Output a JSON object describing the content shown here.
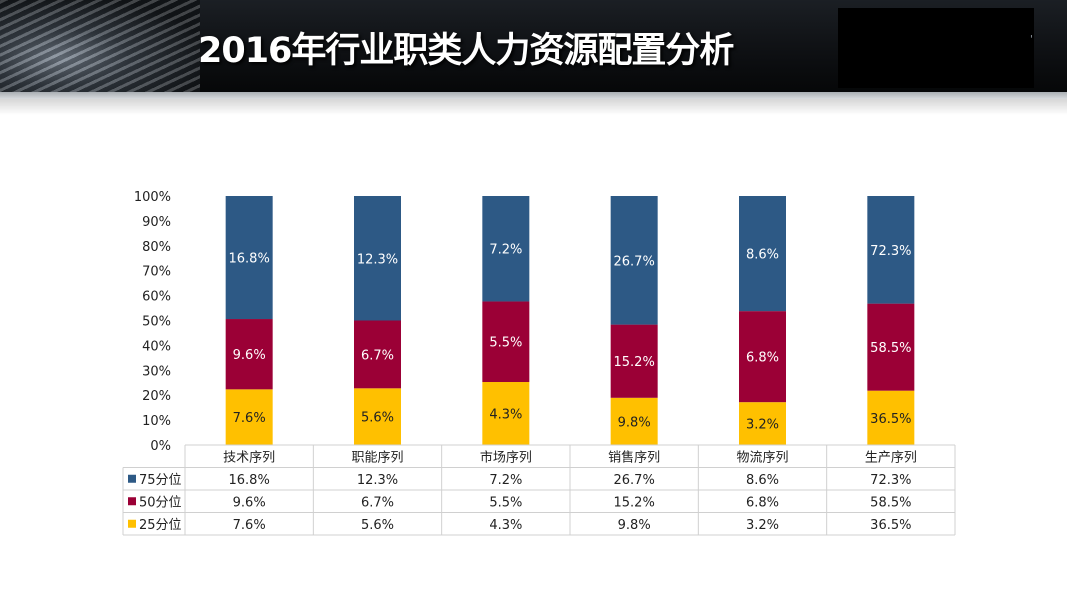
{
  "title": "2016年行业职类人力资源配置分析",
  "header_mark": "'",
  "chart_data": {
    "type": "bar",
    "stacked": "percent",
    "categories": [
      "技术序列",
      "职能序列",
      "市场序列",
      "销售序列",
      "物流序列",
      "生产序列"
    ],
    "series": [
      {
        "name": "25分位",
        "color": "#FFC000",
        "values": [
          7.6,
          5.6,
          4.3,
          9.8,
          3.2,
          36.5
        ],
        "labels": [
          "7.6%",
          "5.6%",
          "4.3%",
          "9.8%",
          "3.2%",
          "36.5%"
        ]
      },
      {
        "name": "50分位",
        "color": "#9B0036",
        "values": [
          9.6,
          6.7,
          5.5,
          15.2,
          6.8,
          58.5
        ],
        "labels": [
          "9.6%",
          "6.7%",
          "5.5%",
          "15.2%",
          "6.8%",
          "58.5%"
        ]
      },
      {
        "name": "75分位",
        "color": "#2D5985",
        "values": [
          16.8,
          12.3,
          7.2,
          26.7,
          8.6,
          72.3
        ],
        "labels": [
          "16.8%",
          "12.3%",
          "7.2%",
          "26.7%",
          "8.6%",
          "72.3%"
        ]
      }
    ],
    "ylim": [
      0,
      100
    ],
    "yticks": [
      "0%",
      "10%",
      "20%",
      "30%",
      "40%",
      "50%",
      "60%",
      "70%",
      "80%",
      "90%",
      "100%"
    ],
    "legend": "data-table",
    "table_row_order": [
      "75分位",
      "50分位",
      "25分位"
    ]
  }
}
